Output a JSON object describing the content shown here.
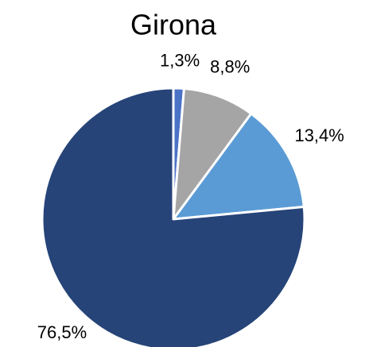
{
  "chart_data": {
    "type": "pie",
    "title": "Girona",
    "values": [
      1.3,
      8.8,
      13.4,
      76.5
    ],
    "value_labels": [
      "1,3%",
      "8,8%",
      "13,4%",
      "76,5%"
    ],
    "colors": [
      "#4a72c6",
      "#a5a5a5",
      "#5b9bd5",
      "#264478"
    ]
  }
}
